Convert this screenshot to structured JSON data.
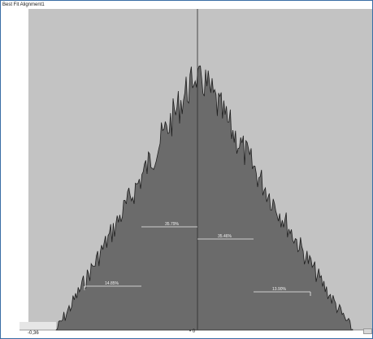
{
  "window": {
    "title": "Best Fit Alignment1"
  },
  "chart_data": {
    "type": "area",
    "xlabel": "",
    "ylabel": "",
    "xlim_label_left": "-0,36",
    "axis_center_label": "• 0",
    "regions": [
      {
        "label": "14.85%"
      },
      {
        "label": "35.79%"
      },
      {
        "label": "35.46%"
      },
      {
        "label": "13.90%"
      }
    ],
    "colors": {
      "background": "#c3c3c3",
      "fill": "#6b6b6b",
      "outline": "#1e1e1e"
    }
  }
}
